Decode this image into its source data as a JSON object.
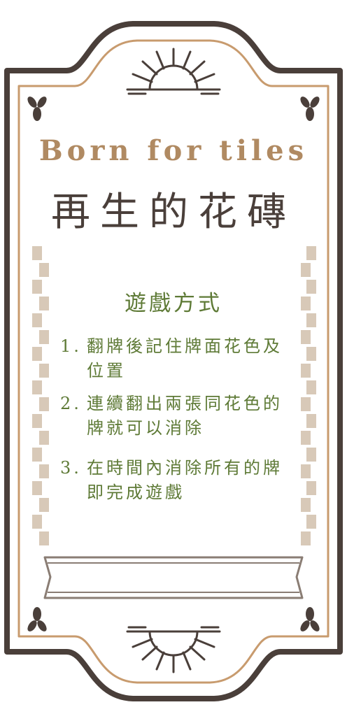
{
  "card": {
    "subtitle": "Born for tiles",
    "title": "再生的花磚",
    "section_heading": "遊戲方式",
    "rules": [
      {
        "number": "1.",
        "text": "翻牌後記住牌面花色及位置"
      },
      {
        "number": "2.",
        "text": "連續翻出兩張同花色的牌就可以消除"
      },
      {
        "number": "3.",
        "text": "在時間內消除所有的牌即完成遊戲"
      }
    ]
  },
  "colors": {
    "frame_outer": "#4a3f3a",
    "frame_inner": "#c89b6e",
    "subtitle": "#b08a62",
    "title": "#4a3f3a",
    "rules_text": "#5e7a36",
    "side_tiles": "#d8c9b8",
    "banner_fill": "#ffffff",
    "banner_stroke": "#8a7d74"
  }
}
